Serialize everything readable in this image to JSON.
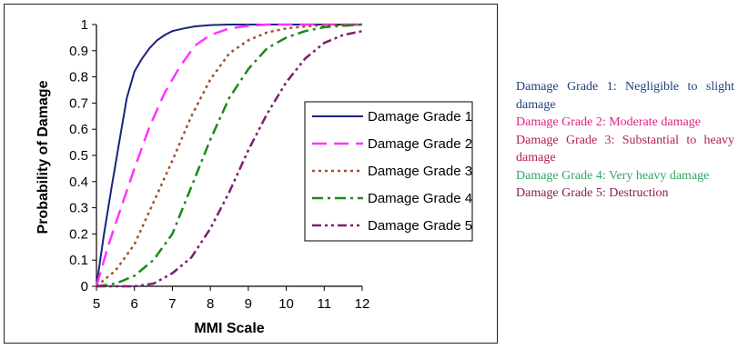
{
  "chart_data": {
    "type": "line",
    "xlabel": "MMI Scale",
    "ylabel": "Probability of Damage",
    "xlim": [
      5,
      12
    ],
    "ylim": [
      0,
      1
    ],
    "xticks": [
      "5",
      "6",
      "7",
      "8",
      "9",
      "10",
      "11",
      "12"
    ],
    "yticks": [
      "0",
      "0.1",
      "0.2",
      "0.3",
      "0.4",
      "0.5",
      "0.6",
      "0.7",
      "0.8",
      "0.9",
      "1"
    ],
    "grid": false,
    "legend_position": "right",
    "series": [
      {
        "name": "Damage Grade 1",
        "color": "#1a237e",
        "dash": "solid",
        "x": [
          5.0,
          5.2,
          5.4,
          5.6,
          5.8,
          6.0,
          6.2,
          6.4,
          6.6,
          6.8,
          7.0,
          7.3,
          7.6,
          8.0,
          8.5,
          9.0,
          10.0,
          11.0,
          12.0
        ],
        "y": [
          0.0,
          0.2,
          0.38,
          0.55,
          0.72,
          0.82,
          0.87,
          0.91,
          0.94,
          0.96,
          0.975,
          0.985,
          0.993,
          0.998,
          1.0,
          1.0,
          1.0,
          1.0,
          1.0
        ]
      },
      {
        "name": "Damage Grade 2",
        "color": "#ff33ff",
        "dash": "long-dash",
        "x": [
          5.0,
          5.3,
          5.6,
          6.0,
          6.4,
          6.8,
          7.2,
          7.6,
          8.0,
          8.5,
          9.0,
          9.5,
          10.0,
          11.0,
          12.0
        ],
        "y": [
          0.0,
          0.15,
          0.28,
          0.45,
          0.61,
          0.74,
          0.84,
          0.92,
          0.96,
          0.985,
          0.995,
          1.0,
          1.0,
          1.0,
          1.0
        ]
      },
      {
        "name": "Damage Grade 3",
        "color": "#a0522d",
        "dash": "dots",
        "x": [
          5.0,
          5.5,
          6.0,
          6.5,
          7.0,
          7.5,
          8.0,
          8.5,
          9.0,
          9.5,
          10.0,
          10.5,
          11.0,
          12.0
        ],
        "y": [
          0.0,
          0.06,
          0.16,
          0.32,
          0.48,
          0.65,
          0.79,
          0.89,
          0.94,
          0.97,
          0.985,
          0.993,
          0.998,
          1.0
        ]
      },
      {
        "name": "Damage Grade 4",
        "color": "#1a8a1a",
        "dash": "dash-dot",
        "x": [
          5.0,
          5.5,
          6.0,
          6.5,
          7.0,
          7.5,
          8.0,
          8.5,
          9.0,
          9.5,
          10.0,
          10.5,
          11.0,
          11.5,
          12.0
        ],
        "y": [
          0.0,
          0.01,
          0.04,
          0.1,
          0.2,
          0.38,
          0.56,
          0.72,
          0.83,
          0.91,
          0.95,
          0.975,
          0.99,
          0.995,
          1.0
        ]
      },
      {
        "name": "Damage Grade 5",
        "color": "#7b1f6e",
        "dash": "dash-dot-dot",
        "x": [
          5.0,
          6.0,
          6.5,
          7.0,
          7.5,
          8.0,
          8.5,
          9.0,
          9.5,
          10.0,
          10.5,
          11.0,
          11.5,
          12.0
        ],
        "y": [
          0.0,
          0.0,
          0.01,
          0.05,
          0.11,
          0.22,
          0.36,
          0.52,
          0.66,
          0.78,
          0.87,
          0.93,
          0.96,
          0.975
        ]
      }
    ]
  },
  "description": [
    {
      "text": "Damage Grade 1: Negligible to slight damage",
      "color": "#1f3f7a"
    },
    {
      "text": "Damage Grade 2: Moderate damage",
      "color": "#e0218a"
    },
    {
      "text": "Damage Grade 3: Substantial to heavy damage",
      "color": "#b0224a"
    },
    {
      "text": "Damage Grade 4: Very heavy damage",
      "color": "#2fa860"
    },
    {
      "text": "Damage Grade 5: Destruction",
      "color": "#8a1f4a"
    }
  ]
}
